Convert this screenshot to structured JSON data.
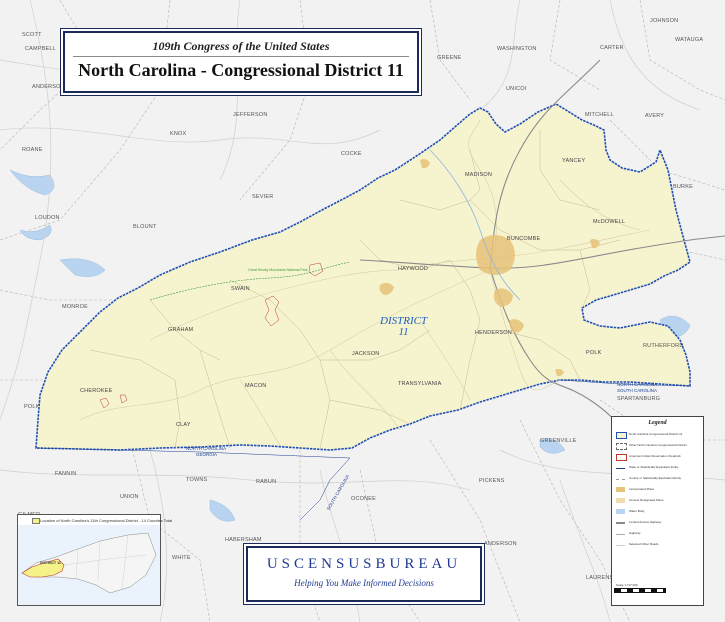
{
  "title": {
    "line1": "109th Congress of the United States",
    "line2": "North Carolina - Congressional District 11"
  },
  "district_label": {
    "line1": "DISTRICT",
    "line2": "11"
  },
  "counties_in_district": [
    "HAYWOOD",
    "BUNCOMBE",
    "MADISON",
    "YANCEY",
    "McDOWELL",
    "SWAIN",
    "GRAHAM",
    "CHEROKEE",
    "CLAY",
    "MACON",
    "JACKSON",
    "TRANSYLVANIA",
    "HENDERSON",
    "POLK"
  ],
  "counties_outside": [
    "JOHNSON",
    "SCOTT",
    "CAMPBELL",
    "WASHINGTON",
    "WATAUGA",
    "CARTER",
    "GREENE",
    "ANDERSON",
    "UNICOI",
    "MITCHELL",
    "AVERY",
    "JEFFERSON",
    "KNOX",
    "COCKE",
    "ROANE",
    "BURKE",
    "SEVIER",
    "LOUDON",
    "BLOUNT",
    "MONROE",
    "RUTHERFORD",
    "POLK",
    "SPARTANBURG",
    "GREENVILLE",
    "PICKENS",
    "OCONEE",
    "FANNIN",
    "TOWNS",
    "UNION",
    "RABUN",
    "GILMER",
    "HABERSHAM",
    "WHITE",
    "ANDERSON",
    "LAURENS"
  ],
  "state_lines": [
    "NORTH CAROLINA",
    "GEORGIA",
    "SOUTH CAROLINA",
    "NORTH CAROLINA",
    "SOUTH CAROLINA"
  ],
  "park_label": "Great Smoky Mountains National Park",
  "census": {
    "wordmark": "USCENSUSBUREAU",
    "tagline": "Helping You Make Informed Decisions"
  },
  "locator": {
    "caption": "Location of North Carolina's 11th Congressional District - 14 Counties Total",
    "district_tag": "DISTRICT 11"
  },
  "legend": {
    "title": "Legend",
    "items": [
      "North Carolina Congressional District 11",
      "Other North Carolina Congressional District",
      "American Indian Reservation (Federal)",
      "State or Statistically Equivalent Entity",
      "County or Statistically Equivalent Entity",
      "Incorporated Place",
      "Census Designated Place",
      "Water Body",
      "Limited Access Highway",
      "Highway",
      "Selected Other Roads"
    ],
    "scale_label": "Scale 1:717,000"
  },
  "colors": {
    "district_fill": "#f6f3cf",
    "outside_fill": "#f2f2f2",
    "district_border": "#1f4fb5",
    "road": "#c9c9c9",
    "urban": "#e7c27a",
    "water": "#b9d4f0",
    "park_boundary": "#3a9a3a",
    "reservation": "#c0392b",
    "title_navy": "#1a2a5a",
    "census_blue": "#1f3a8f"
  }
}
